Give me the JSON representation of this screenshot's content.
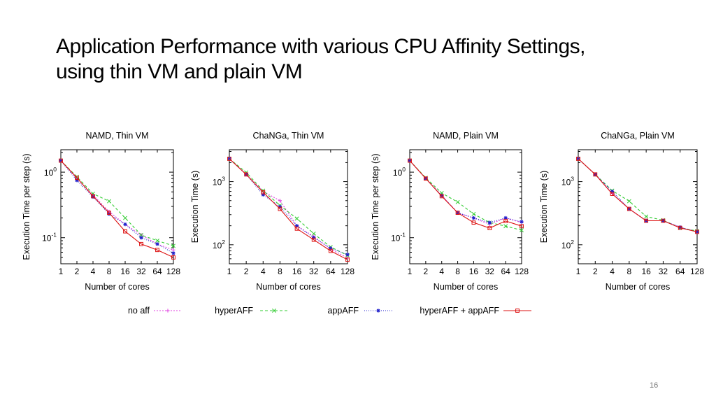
{
  "slide": {
    "title_line1": "Application Performance with various CPU Affinity Settings,",
    "title_line2": "using thin VM and plain VM",
    "page_number": "16"
  },
  "legend": [
    {
      "name": "no aff",
      "color": "#e040e0",
      "marker": "plus",
      "dash": "2,2"
    },
    {
      "name": "hyperAFF",
      "color": "#33cc33",
      "marker": "x",
      "dash": "4,3"
    },
    {
      "name": "appAFF",
      "color": "#2222cc",
      "marker": "star",
      "dash": "1,2"
    },
    {
      "name": "hyperAFF + appAFF",
      "color": "#dd1111",
      "marker": "square",
      "dash": ""
    }
  ],
  "chart_data": [
    {
      "type": "line",
      "title": "NAMD, Thin VM",
      "xlabel": "Number of cores",
      "ylabel": "Execution Time per step (s)",
      "x": [
        1,
        2,
        4,
        8,
        16,
        32,
        64,
        128
      ],
      "xscale": "log2",
      "yscale": "log",
      "ylim": [
        0.04,
        2.2
      ],
      "yticks": [
        {
          "value": 1,
          "label": "10",
          "exp": "0"
        },
        {
          "value": 0.1,
          "label": "10",
          "exp": "-1"
        }
      ],
      "series": [
        {
          "name": "no aff",
          "values": [
            1.5,
            0.8,
            0.45,
            0.25,
            0.16,
            0.11,
            0.08,
            0.065
          ]
        },
        {
          "name": "hyperAFF",
          "values": [
            1.5,
            0.85,
            0.47,
            0.36,
            0.2,
            0.11,
            0.09,
            0.075
          ]
        },
        {
          "name": "appAFF",
          "values": [
            1.5,
            0.75,
            0.42,
            0.23,
            0.16,
            0.1,
            0.08,
            0.058
          ]
        },
        {
          "name": "hyperAFF + appAFF",
          "values": [
            1.5,
            0.82,
            0.43,
            0.24,
            0.125,
            0.08,
            0.065,
            0.05
          ]
        }
      ]
    },
    {
      "type": "line",
      "title": "ChaNGa, Thin VM",
      "xlabel": "Number of cores",
      "ylabel": "Execution Time (s)",
      "x": [
        1,
        2,
        4,
        8,
        16,
        32,
        64,
        128
      ],
      "xscale": "log2",
      "yscale": "log",
      "ylim": [
        50,
        3200
      ],
      "yticks": [
        {
          "value": 1000,
          "label": "10",
          "exp": "3"
        },
        {
          "value": 100,
          "label": "10",
          "exp": "2"
        }
      ],
      "series": [
        {
          "name": "no aff",
          "values": [
            2300,
            1300,
            700,
            500,
            200,
            135,
            85,
            62
          ]
        },
        {
          "name": "hyperAFF",
          "values": [
            2300,
            1400,
            720,
            420,
            260,
            150,
            92,
            68
          ]
        },
        {
          "name": "appAFF",
          "values": [
            2300,
            1300,
            620,
            400,
            200,
            130,
            88,
            70
          ]
        },
        {
          "name": "hyperAFF + appAFF",
          "values": [
            2300,
            1300,
            680,
            370,
            180,
            120,
            80,
            58
          ]
        }
      ]
    },
    {
      "type": "line",
      "title": "NAMD, Plain VM",
      "xlabel": "Number of cores",
      "ylabel": "Execution Time per step (s)",
      "x": [
        1,
        2,
        4,
        8,
        16,
        32,
        64,
        128
      ],
      "xscale": "log2",
      "yscale": "log",
      "ylim": [
        0.04,
        2.2
      ],
      "yticks": [
        {
          "value": 1,
          "label": "10",
          "exp": "0"
        },
        {
          "value": 0.1,
          "label": "10",
          "exp": "-1"
        }
      ],
      "series": [
        {
          "name": "no aff",
          "values": [
            1.5,
            0.8,
            0.44,
            0.24,
            0.2,
            0.16,
            0.2,
            0.17
          ]
        },
        {
          "name": "hyperAFF",
          "values": [
            1.5,
            0.82,
            0.48,
            0.35,
            0.23,
            0.17,
            0.15,
            0.13
          ]
        },
        {
          "name": "appAFF",
          "values": [
            1.5,
            0.8,
            0.44,
            0.24,
            0.2,
            0.17,
            0.2,
            0.175
          ]
        },
        {
          "name": "hyperAFF + appAFF",
          "values": [
            1.5,
            0.8,
            0.43,
            0.24,
            0.17,
            0.14,
            0.18,
            0.15
          ]
        }
      ]
    },
    {
      "type": "line",
      "title": "ChaNGa, Plain VM",
      "xlabel": "Number of cores",
      "ylabel": "Execution Time (s)",
      "x": [
        1,
        2,
        4,
        8,
        16,
        32,
        64,
        128
      ],
      "xscale": "log2",
      "yscale": "log",
      "ylim": [
        50,
        3200
      ],
      "yticks": [
        {
          "value": 1000,
          "label": "10",
          "exp": "3"
        },
        {
          "value": 100,
          "label": "10",
          "exp": "2"
        }
      ],
      "series": [
        {
          "name": "no aff",
          "values": [
            2300,
            1300,
            650,
            370,
            240,
            240,
            190,
            160
          ]
        },
        {
          "name": "hyperAFF",
          "values": [
            2300,
            1300,
            720,
            490,
            280,
            245,
            185,
            165
          ]
        },
        {
          "name": "appAFF",
          "values": [
            2300,
            1300,
            700,
            370,
            240,
            240,
            190,
            160
          ]
        },
        {
          "name": "hyperAFF + appAFF",
          "values": [
            2300,
            1300,
            640,
            370,
            240,
            240,
            185,
            160
          ]
        }
      ]
    }
  ]
}
